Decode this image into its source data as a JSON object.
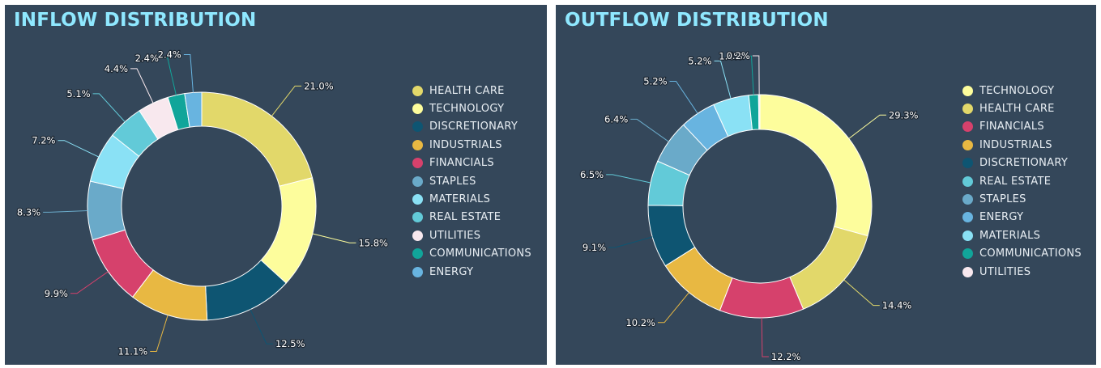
{
  "colors": {
    "page_background": "#ffffff",
    "panel_background": "#34475a",
    "title": "#8fe8ff",
    "legend_text": "#e8eef3"
  },
  "panels": [
    {
      "title": "INFLOW DISTRIBUTION"
    },
    {
      "title": "OUTFLOW DISTRIBUTION"
    }
  ],
  "chart_data": [
    {
      "type": "pie",
      "donut": true,
      "title": "INFLOW DISTRIBUTION",
      "legend_position": "right",
      "categories": [
        "HEALTH CARE",
        "TECHNOLOGY",
        "DISCRETIONARY",
        "INDUSTRIALS",
        "FINANCIALS",
        "STAPLES",
        "MATERIALS",
        "REAL ESTATE",
        "UTILITIES",
        "COMMUNICATIONS",
        "ENERGY"
      ],
      "values": [
        21.0,
        15.8,
        12.5,
        11.1,
        9.9,
        8.3,
        7.2,
        5.1,
        4.4,
        2.4,
        2.4
      ],
      "labels": [
        "21.0%",
        "15.8%",
        "12.5%",
        "11.1%",
        "9.9%",
        "8.3%",
        "7.2%",
        "5.1%",
        "4.4%",
        "2.4%",
        "2.4%"
      ],
      "colors": [
        "#e2d86a",
        "#fdfd9c",
        "#0e5572",
        "#e8b842",
        "#d6416c",
        "#6aaac9",
        "#8ae1f5",
        "#62cad8",
        "#f8e8ee",
        "#11a59a",
        "#68b4e0"
      ]
    },
    {
      "type": "pie",
      "donut": true,
      "title": "OUTFLOW DISTRIBUTION",
      "legend_position": "right",
      "categories": [
        "TECHNOLOGY",
        "HEALTH CARE",
        "FINANCIALS",
        "INDUSTRIALS",
        "DISCRETIONARY",
        "REAL ESTATE",
        "STAPLES",
        "ENERGY",
        "MATERIALS",
        "COMMUNICATIONS",
        "UTILITIES"
      ],
      "values": [
        29.3,
        14.4,
        12.2,
        10.2,
        9.1,
        6.5,
        6.4,
        5.2,
        5.2,
        1.4,
        0.2
      ],
      "labels": [
        "29.3%",
        "14.4%",
        "12.2%",
        "10.2%",
        "9.1%",
        "6.5%",
        "6.4%",
        "5.2%",
        "5.2%",
        "1.4%",
        "0.2%"
      ],
      "colors": [
        "#fdfd9c",
        "#e2d86a",
        "#d6416c",
        "#e8b842",
        "#0e5572",
        "#62cad8",
        "#6aaac9",
        "#68b4e0",
        "#8ae1f5",
        "#11a59a",
        "#f8e8ee"
      ]
    }
  ]
}
